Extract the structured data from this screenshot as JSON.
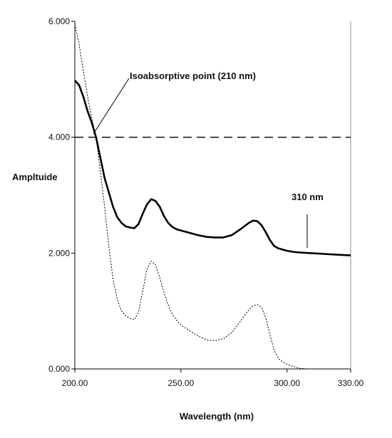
{
  "chart_data": {
    "type": "line",
    "title": "",
    "xlabel": "Wavelength (nm)",
    "ylabel": "Ampltuide",
    "xlim": [
      200,
      330
    ],
    "ylim": [
      0,
      6
    ],
    "xticks": [
      200,
      250,
      300,
      330
    ],
    "xtick_labels": [
      "200.00",
      "250.00",
      "300.00",
      "330.00"
    ],
    "yticks": [
      0,
      2,
      4,
      6
    ],
    "ytick_labels": [
      "0.000",
      "2.000",
      "4.000",
      "6.000"
    ],
    "grid": false,
    "legend": "none",
    "series": [
      {
        "style": "solid-bold",
        "x": [
          200,
          202,
          204,
          206,
          208,
          210,
          212,
          214,
          216,
          218,
          220,
          222,
          224,
          226,
          228,
          230,
          232,
          234,
          236,
          238,
          240,
          242,
          244,
          246,
          248,
          250,
          254,
          258,
          262,
          266,
          270,
          274,
          278,
          282,
          284,
          286,
          288,
          290,
          292,
          294,
          296,
          298,
          300,
          303,
          306,
          310,
          315,
          320,
          325,
          330
        ],
        "y": [
          4.98,
          4.9,
          4.7,
          4.45,
          4.25,
          4.0,
          3.65,
          3.3,
          3.05,
          2.8,
          2.62,
          2.52,
          2.46,
          2.44,
          2.43,
          2.5,
          2.68,
          2.84,
          2.93,
          2.9,
          2.8,
          2.64,
          2.52,
          2.45,
          2.41,
          2.39,
          2.35,
          2.31,
          2.28,
          2.27,
          2.27,
          2.31,
          2.41,
          2.52,
          2.56,
          2.55,
          2.48,
          2.36,
          2.22,
          2.12,
          2.08,
          2.06,
          2.04,
          2.02,
          2.01,
          2.0,
          1.99,
          1.98,
          1.97,
          1.96
        ]
      },
      {
        "style": "dotted",
        "x": [
          200,
          202,
          204,
          206,
          208,
          210,
          212,
          214,
          216,
          218,
          220,
          222,
          224,
          226,
          228,
          230,
          232,
          234,
          236,
          238,
          240,
          242,
          244,
          246,
          248,
          250,
          254,
          258,
          262,
          266,
          270,
          274,
          278,
          282,
          284,
          286,
          288,
          290,
          292,
          294,
          296,
          298,
          300,
          303,
          306,
          310
        ],
        "y": [
          5.95,
          5.6,
          5.15,
          4.7,
          4.32,
          4.0,
          3.42,
          2.8,
          2.12,
          1.55,
          1.2,
          1.0,
          0.92,
          0.87,
          0.85,
          0.98,
          1.35,
          1.72,
          1.86,
          1.8,
          1.58,
          1.32,
          1.1,
          0.94,
          0.84,
          0.76,
          0.66,
          0.57,
          0.5,
          0.49,
          0.52,
          0.63,
          0.82,
          1.02,
          1.09,
          1.11,
          1.06,
          0.88,
          0.58,
          0.32,
          0.18,
          0.12,
          0.08,
          0.04,
          0.01,
          0.0
        ]
      },
      {
        "style": "dashed",
        "x": [
          200,
          330
        ],
        "y": [
          4.0,
          4.0
        ]
      }
    ],
    "annotations": [
      {
        "text": "Isoabsorptive point (210 nm)",
        "x": 210,
        "y": 4.0
      },
      {
        "text": "310 nm",
        "x": 310,
        "y": 2.02
      }
    ]
  }
}
